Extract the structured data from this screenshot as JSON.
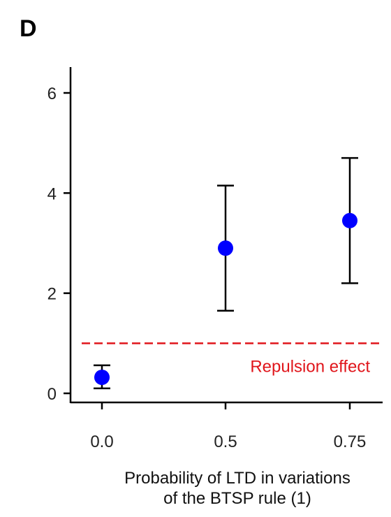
{
  "panel_label": "D",
  "chart_data": {
    "type": "scatter",
    "x": [
      0.0,
      0.5,
      0.75
    ],
    "x_tick_labels": [
      "0.0",
      "0.5",
      "0.75"
    ],
    "y": [
      0.32,
      2.9,
      3.45
    ],
    "y_err_lower": [
      0.1,
      1.65,
      2.2
    ],
    "y_err_upper": [
      0.56,
      4.15,
      4.7
    ],
    "point_color": "#0000ff",
    "ylim": [
      -0.3,
      6.6
    ],
    "y_ticks": [
      0,
      2,
      4,
      6
    ],
    "xlabel": [
      "Probability of LTD in variations",
      "of the BTSP rule (1)"
    ],
    "ylabel": "",
    "reference_line": {
      "y": 1.0,
      "color": "#e0151b",
      "style": "dashed",
      "label": "Repulsion effect"
    },
    "grid": false
  }
}
